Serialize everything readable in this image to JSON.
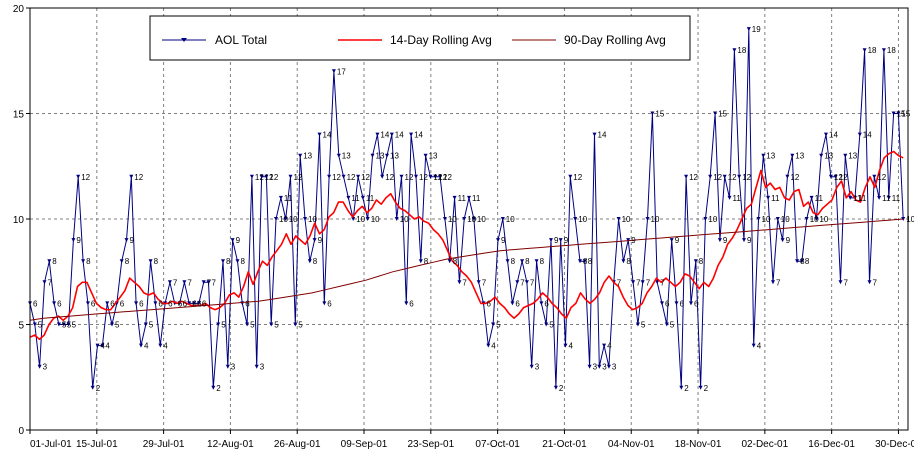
{
  "chart_data": {
    "type": "line",
    "title": "",
    "xlabel": "",
    "ylabel": "",
    "ylim": [
      0,
      20
    ],
    "xlim": [
      "01-Jul-01",
      "31-Dec-01"
    ],
    "yticks": [
      0,
      5,
      10,
      15,
      20
    ],
    "xticks": [
      "01-Jul-01",
      "15-Jul-01",
      "29-Jul-01",
      "12-Aug-01",
      "26-Aug-01",
      "09-Sep-01",
      "23-Sep-01",
      "07-Oct-01",
      "21-Oct-01",
      "04-Nov-01",
      "18-Nov-01",
      "02-Dec-01",
      "16-Dec-01",
      "30-Dec-01"
    ],
    "grid": true,
    "legend_position": "top",
    "x_start": "01-Jul-01",
    "series": [
      {
        "name": "AOL Total",
        "color": "#000080",
        "marker": "triangle-down",
        "data_labels": true,
        "values": [
          6,
          5,
          3,
          7,
          8,
          6,
          5,
          5,
          5,
          9,
          12,
          8,
          6,
          2,
          4,
          4,
          6,
          5,
          6,
          8,
          9,
          12,
          6,
          4,
          5,
          8,
          6,
          4,
          6,
          7,
          6,
          6,
          7,
          6,
          6,
          6,
          7,
          7,
          2,
          5,
          8,
          3,
          9,
          8,
          6,
          5,
          12,
          3,
          12,
          12,
          5,
          10,
          11,
          10,
          12,
          5,
          13,
          10,
          8,
          9,
          14,
          6,
          12,
          17,
          13,
          12,
          11,
          10,
          12,
          11,
          10,
          13,
          14,
          12,
          13,
          14,
          10,
          12,
          6,
          14,
          12,
          8,
          13,
          12,
          12,
          12,
          10,
          8,
          11,
          7,
          10,
          11,
          10,
          7,
          6,
          4,
          5,
          9,
          10,
          8,
          6,
          7,
          8,
          7,
          3,
          8,
          6,
          5,
          9,
          2,
          9,
          4,
          12,
          10,
          8,
          8,
          3,
          14,
          3,
          4,
          3,
          7,
          10,
          8,
          9,
          7,
          5,
          7,
          10,
          15,
          7,
          6,
          5,
          9,
          6,
          2,
          12,
          6,
          8,
          2,
          10,
          12,
          15,
          9,
          12,
          11,
          18,
          12,
          9,
          19,
          4,
          10,
          13,
          11,
          7,
          10,
          9,
          12,
          13,
          8,
          8,
          10,
          11,
          10,
          13,
          14,
          12,
          12,
          7,
          13,
          11,
          11,
          14,
          18,
          7,
          12,
          11,
          18,
          11,
          15,
          15,
          10
        ]
      },
      {
        "name": "14-Day Rolling Avg",
        "color": "#ff0000",
        "values": [
          4.4,
          4.5,
          4.3,
          4.5,
          5.0,
          5.3,
          5.4,
          5.2,
          5.4,
          5.8,
          6.8,
          7.0,
          7.0,
          6.5,
          6.0,
          5.8,
          5.7,
          5.7,
          6.0,
          6.3,
          6.6,
          7.2,
          7.0,
          6.8,
          6.5,
          6.4,
          6.5,
          6.2,
          6.0,
          6.0,
          6.1,
          6.0,
          6.1,
          6.0,
          5.9,
          5.9,
          5.9,
          6.0,
          5.8,
          5.7,
          5.8,
          6.0,
          6.4,
          6.5,
          6.3,
          6.8,
          7.5,
          6.9,
          7.5,
          8.0,
          7.8,
          8.2,
          8.5,
          8.8,
          9.3,
          8.8,
          9.2,
          9.0,
          8.8,
          9.2,
          9.8,
          9.3,
          9.5,
          10.1,
          10.3,
          10.8,
          10.8,
          10.4,
          10.1,
          10.4,
          10.6,
          10.3,
          10.5,
          10.9,
          10.7,
          11.0,
          11.2,
          10.8,
          10.5,
          10.4,
          10.2,
          10.0,
          10.1,
          9.9,
          9.8,
          9.5,
          9.3,
          9.0,
          8.5,
          8.0,
          7.8,
          7.5,
          7.3,
          7.0,
          6.5,
          6.0,
          6.0,
          6.1,
          6.3,
          6.0,
          5.8,
          5.5,
          5.3,
          5.5,
          5.8,
          5.9,
          6.0,
          6.2,
          6.5,
          6.3,
          6.0,
          5.8,
          5.5,
          5.3,
          5.8,
          6.0,
          6.5,
          6.2,
          6.0,
          6.2,
          6.5,
          7.0,
          7.3,
          7.0,
          6.8,
          6.3,
          5.9,
          5.7,
          5.8,
          6.0,
          6.5,
          6.8,
          7.2,
          7.0,
          7.2,
          7.0,
          6.8,
          7.0,
          7.4,
          7.3,
          7.0,
          6.7,
          7.0,
          6.8,
          7.2,
          7.8,
          8.2,
          8.8,
          9.1,
          9.5,
          10.0,
          10.5,
          10.7,
          11.5,
          12.3,
          11.5,
          11.7,
          11.4,
          11.5,
          11.0,
          10.9,
          11.3,
          11.4,
          10.6,
          10.8,
          10.3,
          10.2,
          10.5,
          10.7,
          10.9,
          11.5,
          11.8,
          11.0,
          11.3,
          10.9,
          10.8,
          11.5,
          12.0,
          11.5,
          12.3,
          12.9,
          13.1,
          13.2,
          13.0,
          12.9
        ]
      },
      {
        "name": "90-Day Rolling Avg",
        "color": "#800000",
        "values": [
          5.2,
          5.3,
          5.35,
          5.4,
          5.45,
          5.5,
          5.55,
          5.6,
          5.65,
          5.7,
          5.75,
          5.8,
          5.85,
          5.9,
          5.95,
          6.0,
          6.05,
          6.1,
          6.2,
          6.3,
          6.4,
          6.5,
          6.65,
          6.8,
          6.95,
          7.1,
          7.3,
          7.5,
          7.65,
          7.8,
          7.95,
          8.1,
          8.2,
          8.3,
          8.4,
          8.5,
          8.55,
          8.6,
          8.65,
          8.7,
          8.75,
          8.8,
          8.85,
          8.9,
          8.95,
          9.0,
          9.05,
          9.1,
          9.15,
          9.2,
          9.25,
          9.3,
          9.35,
          9.4,
          9.45,
          9.5,
          9.55,
          9.6,
          9.65,
          9.7,
          9.75,
          9.8,
          9.85,
          9.9,
          9.95,
          10.0
        ]
      }
    ]
  }
}
